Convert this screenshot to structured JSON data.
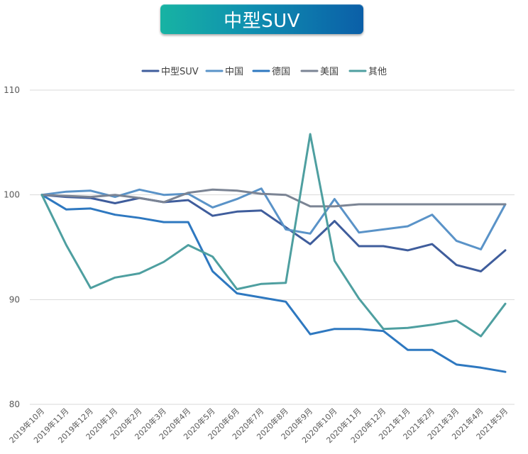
{
  "chart_data": {
    "type": "line",
    "title": "中型SUV",
    "xlabel": "",
    "ylabel": "",
    "ylim": [
      80,
      110
    ],
    "yticks": [
      80,
      90,
      100,
      110
    ],
    "grid": true,
    "legend_position": "top",
    "categories": [
      "2019年10月",
      "2019年11月",
      "2019年12月",
      "2020年1月",
      "2020年2月",
      "2020年3月",
      "2020年4月",
      "2020年5月",
      "2020年6月",
      "2020年7月",
      "2020年8月",
      "2020年9月",
      "2020年10月",
      "2020年11月",
      "2020年12月",
      "2021年1月",
      "2021年2月",
      "2021年3月",
      "2021年4月",
      "2021年5月"
    ],
    "series": [
      {
        "name": "中型SUV",
        "color": "#3f5d9c",
        "values": [
          100,
          99.8,
          99.7,
          99.2,
          99.7,
          99.3,
          99.5,
          98.0,
          98.4,
          98.5,
          96.9,
          95.3,
          97.5,
          95.1,
          95.1,
          94.7,
          95.3,
          93.3,
          92.7,
          94.7
        ]
      },
      {
        "name": "中国",
        "color": "#5a93c8",
        "values": [
          100,
          100.3,
          100.4,
          99.8,
          100.5,
          100.0,
          100.1,
          98.8,
          99.6,
          100.6,
          96.7,
          96.3,
          99.6,
          96.4,
          96.7,
          97.0,
          98.1,
          95.6,
          94.8,
          99.1
        ]
      },
      {
        "name": "德国",
        "color": "#2e78c0",
        "values": [
          100,
          98.6,
          98.7,
          98.1,
          97.8,
          97.4,
          97.4,
          92.7,
          90.6,
          90.2,
          89.8,
          86.7,
          87.2,
          87.2,
          87.0,
          85.2,
          85.2,
          83.8,
          83.5,
          83.1
        ]
      },
      {
        "name": "美国",
        "color": "#7b8494",
        "values": [
          100,
          99.9,
          99.8,
          100.0,
          99.7,
          99.3,
          100.2,
          100.5,
          100.4,
          100.1,
          100.0,
          98.9,
          98.9,
          99.1,
          99.1,
          99.1,
          99.1,
          99.1,
          99.1,
          99.1
        ]
      },
      {
        "name": "其他",
        "color": "#4e9fa0",
        "values": [
          100,
          95.2,
          91.1,
          92.1,
          92.5,
          93.6,
          95.2,
          94.1,
          91.0,
          91.5,
          91.6,
          105.8,
          93.7,
          90.1,
          87.2,
          87.3,
          87.6,
          88.0,
          86.5,
          89.6
        ]
      }
    ]
  }
}
